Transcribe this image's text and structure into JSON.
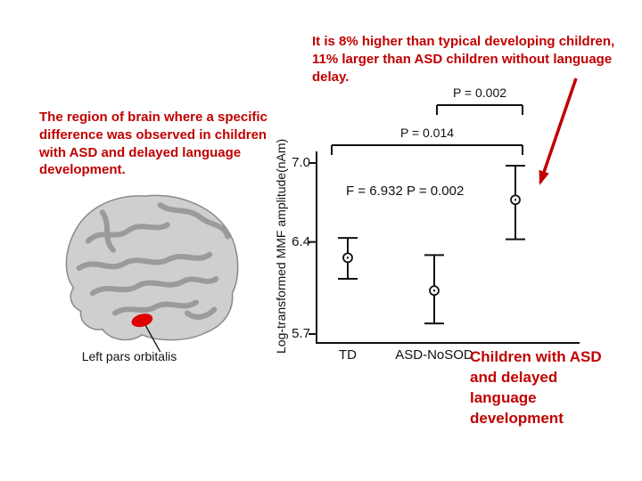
{
  "colors": {
    "accent_red": "#c00000",
    "axis_black": "#111111",
    "brain_gray": "#cfcfcf",
    "gyri_gray": "#9b9b9b",
    "highlight_red": "#e00000"
  },
  "annotations": {
    "left_note": "The region of brain where a specific difference was observed in children with ASD and delayed language development.",
    "top_note": "It is 8% higher than typical developing children, 11% larger than ASD children without language delay.",
    "brain_label": "Left pars orbitalis"
  },
  "chart_data": {
    "type": "scatter",
    "title": "",
    "xlabel": "",
    "ylabel": "Log-transformed MMF amplitude(nAm)",
    "ylim": [
      5.7,
      7.0
    ],
    "yticks": [
      7.0,
      6.4,
      5.7
    ],
    "ytick_labels": [
      "7.0",
      "6.4",
      "5.7"
    ],
    "grid": false,
    "legend": "none",
    "categories": [
      "TD",
      "ASD-NoSOD",
      "Children with ASD and delayed language development"
    ],
    "points": [
      {
        "group": "TD",
        "mean": 6.28,
        "upper": 6.43,
        "lower": 6.12
      },
      {
        "group": "ASD-NoSOD",
        "mean": 6.03,
        "upper": 6.3,
        "lower": 5.78
      },
      {
        "group": "Children with ASD and delayed language development",
        "mean": 6.72,
        "upper": 6.98,
        "lower": 6.42
      }
    ],
    "comparisons": [
      {
        "label": "P = 0.014",
        "from": 0,
        "to": 2
      },
      {
        "label": "P = 0.002",
        "from": 1,
        "to": 2
      }
    ],
    "stat_text": "F = 6.932 P = 0.002"
  }
}
